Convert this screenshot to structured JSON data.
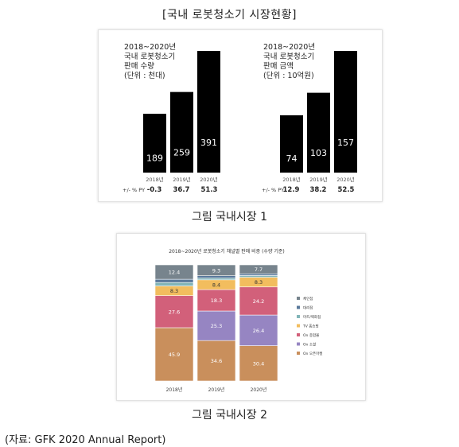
{
  "page_title": "[국내 로봇청소기 시장현황]",
  "caption1": "그림 국내시장 1",
  "caption2": "그림 국내시장 2",
  "source": "(자료: GFK 2020 Annual Report)",
  "chart_data": [
    {
      "type": "bar",
      "title_lines": [
        "2018~2020년",
        "국내 로봇청소기",
        "판매 수량",
        "(단위 : 천대)"
      ],
      "categories": [
        "2018년",
        "2019년",
        "2020년"
      ],
      "values": [
        189,
        259,
        391
      ],
      "growth_label": "+/- % PY",
      "growth": [
        "-0.3",
        "36.7",
        "51.3"
      ],
      "bar_color": "#000000"
    },
    {
      "type": "bar",
      "title_lines": [
        "2018~2020년",
        "국내 로봇청소기",
        "판매 금액",
        "(단위 : 10억원)"
      ],
      "categories": [
        "2018년",
        "2019년",
        "2020년"
      ],
      "values": [
        74,
        103,
        157
      ],
      "growth_label": "+/- % PY",
      "growth": [
        "12.9",
        "38.2",
        "52.5"
      ],
      "bar_color": "#000000"
    },
    {
      "type": "bar",
      "stacked": true,
      "title": "2018~2020년 로봇청소기 채널별 판매 비중 (수량 기준)",
      "categories": [
        "2018년",
        "2019년",
        "2020년"
      ],
      "ylim": [
        0,
        100
      ],
      "legend_position": "right",
      "series": [
        {
          "name": "On 오픈마켓",
          "color": "#c98f5c",
          "values": [
            45.9,
            34.6,
            30.4
          ],
          "labels": [
            "45.9",
            "34.6",
            "30.4"
          ]
        },
        {
          "name": "On 소셜",
          "color": "#9685c2",
          "values": [
            0,
            25.3,
            26.4
          ],
          "labels": [
            "",
            "25.3",
            "26.4"
          ]
        },
        {
          "name": "On 종합몰",
          "color": "#d2607a",
          "values": [
            27.6,
            18.3,
            24.2
          ],
          "labels": [
            "27.6",
            "18.3",
            "24.2"
          ]
        },
        {
          "name": "TV 홈쇼핑",
          "color": "#f2bd5e",
          "values": [
            8.3,
            8.4,
            8.3
          ],
          "labels": [
            "8.3",
            "8.4",
            "8.3"
          ]
        },
        {
          "name": "마트/백화점",
          "color": "#82b5b8",
          "values": [
            3.0,
            1.5,
            1.5
          ],
          "labels": [
            "",
            "",
            ""
          ]
        },
        {
          "name": "대리점",
          "color": "#58789a",
          "values": [
            2.8,
            2.0,
            1.5
          ],
          "labels": [
            "",
            "",
            ""
          ]
        },
        {
          "name": "체인점",
          "color": "#77848d",
          "values": [
            12.4,
            9.3,
            7.7
          ],
          "labels": [
            "12.4",
            "9.3",
            "7.7"
          ]
        }
      ]
    }
  ]
}
